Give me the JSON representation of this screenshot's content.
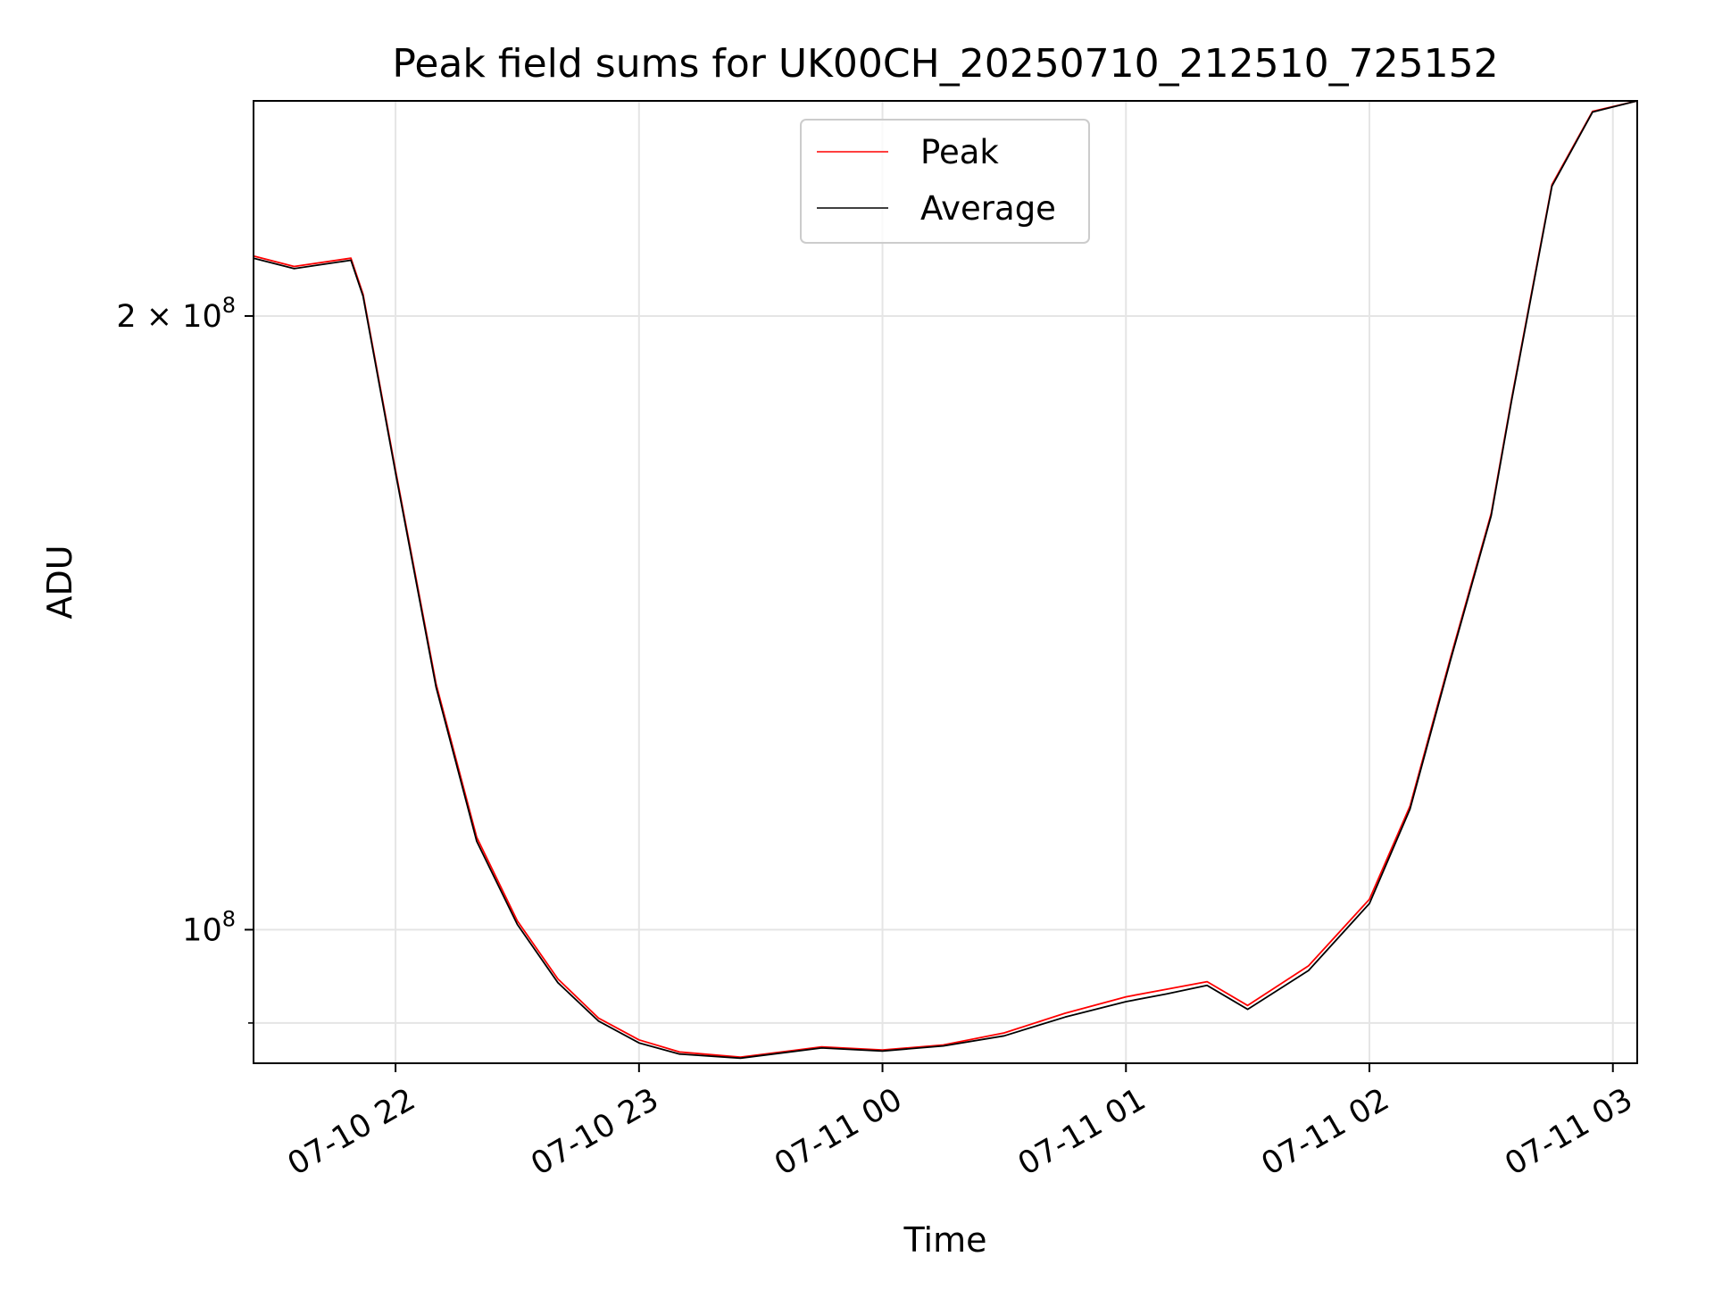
{
  "chart_data": {
    "type": "line",
    "title": "Peak field sums for UK00CH_20250710_212510_725152",
    "xlabel": "Time",
    "ylabel": "ADU",
    "y_scale": "log",
    "xlim": [
      "2025-07-10 21:25",
      "2025-07-11 03:06"
    ],
    "ylim": [
      86000000.0,
      255000000.0
    ],
    "x_ticks": [
      {
        "value": "2025-07-10 22:00",
        "label": "07-10 22"
      },
      {
        "value": "2025-07-10 23:00",
        "label": "07-10 23"
      },
      {
        "value": "2025-07-11 00:00",
        "label": "07-11 00"
      },
      {
        "value": "2025-07-11 01:00",
        "label": "07-11 01"
      },
      {
        "value": "2025-07-11 02:00",
        "label": "07-11 02"
      },
      {
        "value": "2025-07-11 03:00",
        "label": "07-11 03"
      }
    ],
    "y_ticks": [
      {
        "value": 200000000,
        "label": "2 × 10^8",
        "base": "2 × 10",
        "exp": "8"
      },
      {
        "value": 100000000,
        "label": "10^8",
        "base": "10",
        "exp": "8"
      }
    ],
    "y_minor_ticks": [
      90000000
    ],
    "grid": true,
    "legend_position": "top-center",
    "series": [
      {
        "name": "Peak",
        "color": "#ff0000",
        "x": [
          "2025-07-10 21:25",
          "2025-07-10 21:35",
          "2025-07-10 21:49",
          "2025-07-10 21:52",
          "2025-07-10 22:00",
          "2025-07-10 22:10",
          "2025-07-10 22:20",
          "2025-07-10 22:30",
          "2025-07-10 22:40",
          "2025-07-10 22:50",
          "2025-07-10 23:00",
          "2025-07-10 23:10",
          "2025-07-10 23:25",
          "2025-07-10 23:45",
          "2025-07-11 00:00",
          "2025-07-11 00:15",
          "2025-07-11 00:30",
          "2025-07-11 00:45",
          "2025-07-11 01:00",
          "2025-07-11 01:10",
          "2025-07-11 01:20",
          "2025-07-11 01:30",
          "2025-07-11 01:45",
          "2025-07-11 02:00",
          "2025-07-11 02:10",
          "2025-07-11 02:20",
          "2025-07-11 02:30",
          "2025-07-11 02:35",
          "2025-07-11 02:45",
          "2025-07-11 02:55",
          "2025-07-11 03:06"
        ],
        "y": [
          214000000,
          211500000,
          213500000,
          205000000,
          168000000,
          132000000,
          111000000,
          101000000,
          94600000,
          90500000,
          88300000,
          87100000,
          86600000,
          87600000,
          87300000,
          87800000,
          89000000,
          91000000,
          92700000,
          93500000,
          94300000,
          91800000,
          96000000,
          103500000,
          115000000,
          136000000,
          160000000,
          182000000,
          232000000,
          252000000,
          255000000
        ]
      },
      {
        "name": "Average",
        "color": "#000000",
        "x": [
          "2025-07-10 21:25",
          "2025-07-10 21:35",
          "2025-07-10 21:49",
          "2025-07-10 21:52",
          "2025-07-10 22:00",
          "2025-07-10 22:10",
          "2025-07-10 22:20",
          "2025-07-10 22:30",
          "2025-07-10 22:40",
          "2025-07-10 22:50",
          "2025-07-10 23:00",
          "2025-07-10 23:10",
          "2025-07-10 23:25",
          "2025-07-10 23:45",
          "2025-07-11 00:00",
          "2025-07-11 00:15",
          "2025-07-11 00:30",
          "2025-07-11 00:45",
          "2025-07-11 01:00",
          "2025-07-11 01:10",
          "2025-07-11 01:20",
          "2025-07-11 01:30",
          "2025-07-11 01:45",
          "2025-07-11 02:00",
          "2025-07-11 02:10",
          "2025-07-11 02:20",
          "2025-07-11 02:30",
          "2025-07-11 02:35",
          "2025-07-11 02:45",
          "2025-07-11 02:55",
          "2025-07-11 03:06"
        ],
        "y": [
          213500000,
          211000000,
          213000000,
          204500000,
          167500000,
          131500000,
          110500000,
          100600000,
          94200000,
          90200000,
          88000000,
          86900000,
          86500000,
          87500000,
          87200000,
          87700000,
          88700000,
          90600000,
          92200000,
          93000000,
          93900000,
          91400000,
          95500000,
          103000000,
          114600000,
          135600000,
          159600000,
          181600000,
          231600000,
          251800000,
          255000000
        ]
      }
    ]
  }
}
